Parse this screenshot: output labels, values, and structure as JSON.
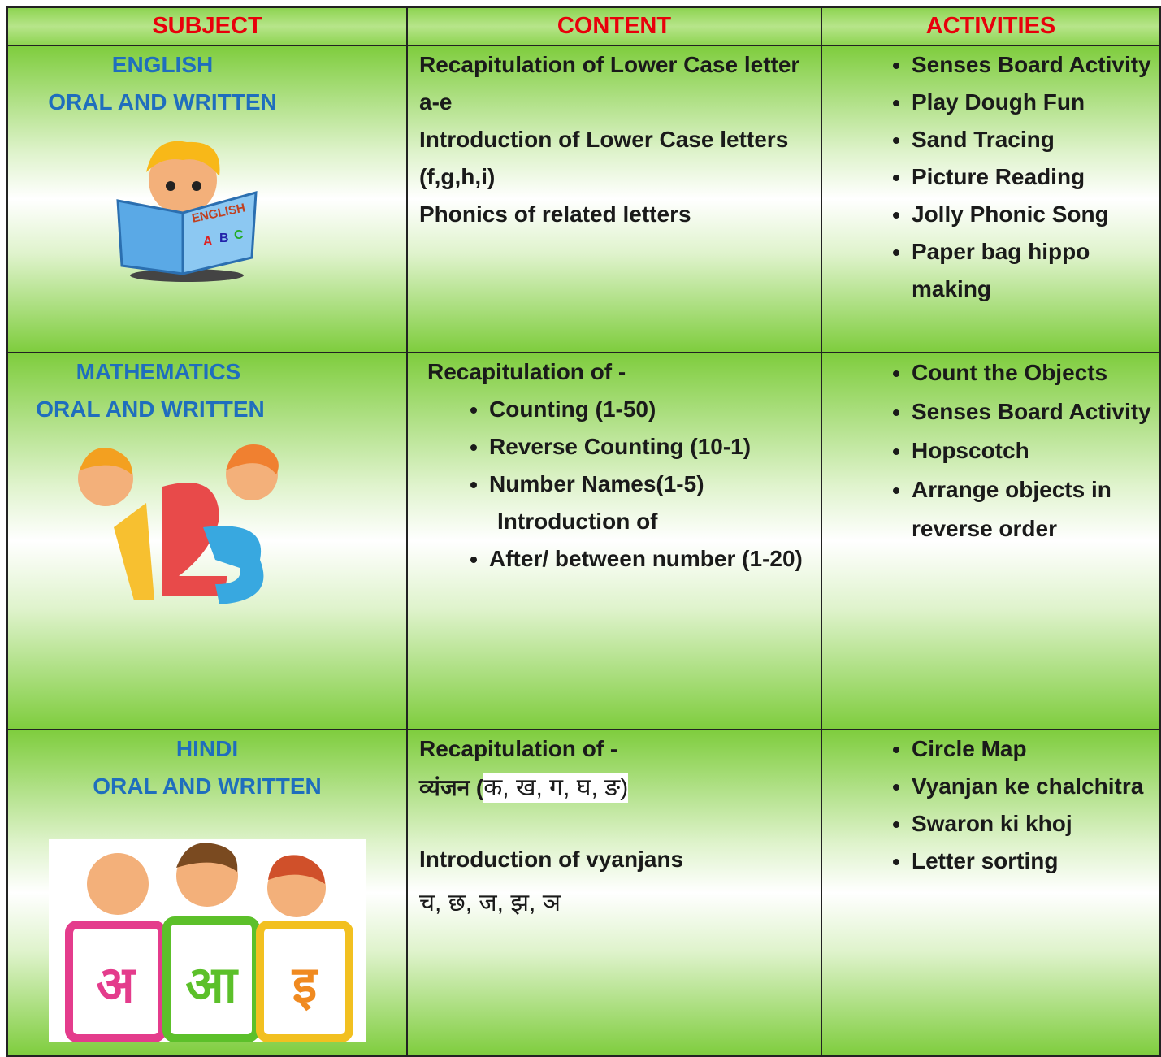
{
  "table": {
    "headers": [
      "SUBJECT",
      "CONTENT",
      "ACTIVITIES"
    ],
    "rows": [
      {
        "subject": [
          "ENGLISH",
          "ORAL AND WRITTEN"
        ],
        "image_text": [
          "ENGLISH",
          "A",
          "B",
          "C"
        ],
        "content": [
          "Recapitulation of Lower Case letter a-e",
          " Introduction of Lower Case letters (f,g,h,i)",
          "Phonics of related letters"
        ],
        "activities": [
          "Senses Board Activity",
          "Play Dough Fun",
          " Sand Tracing",
          "Picture Reading",
          "Jolly Phonic Song",
          "Paper bag hippo making"
        ]
      },
      {
        "subject": [
          "MATHEMATICS",
          "ORAL AND WRITTEN"
        ],
        "content": {
          "intro": "Recapitulation of -",
          "bullets": [
            "Counting (1-50)",
            "Reverse Counting (10-1)",
            "Number Names(1-5)"
          ],
          "subheading": "Introduction of",
          "sub_bullets": [
            "After/ between number (1-20)"
          ]
        },
        "activities": [
          "Count the Objects",
          "Senses Board Activity",
          "Hopscotch",
          "Arrange objects in reverse order"
        ]
      },
      {
        "subject": [
          "HINDI",
          "ORAL AND WRITTEN"
        ],
        "image_text": [
          "अ",
          "आ",
          "इ"
        ],
        "content": {
          "intro": "Recapitulation of -",
          "recap_label": "व्यंजन (",
          "recap_letters": "क, ख, ग, घ, ङ)",
          "intro2": "Introduction of vyanjans",
          "letters": "च,  छ,  ज,  झ,  ञ"
        },
        "activities": [
          "Circle Map",
          "Vyanjan ke chalchitra",
          "Swaron ki khoj",
          "Letter sorting"
        ]
      }
    ]
  }
}
